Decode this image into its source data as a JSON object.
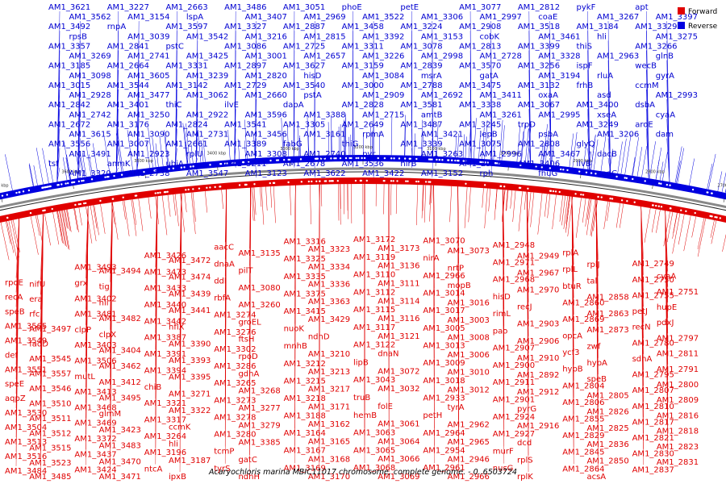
{
  "caption": "Acaryochloris marina MBIC11017 chromosome, complete genome. - 0..6503724",
  "legend": [
    {
      "label": "Forward",
      "color": "#e00000"
    },
    {
      "label": "Reverse",
      "color": "#0000e0"
    }
  ],
  "colors": {
    "forward": "#e00000",
    "reverse": "#0000e0",
    "ring": "#555555"
  },
  "scale_ticks": [
    "3700 kbp",
    "3600 kbp",
    "3500 kbp",
    "3400 kbp",
    "3300 kbp",
    "3200 kbp",
    "3100 kbp",
    "3000 kbp",
    "2900 kbp",
    "2800 kbp",
    "2700 kbp"
  ],
  "reverse_genes": [
    "AM1_3621",
    "AM1_3562",
    "AM1_3492",
    "rpsB",
    "AM1_3357",
    "AM1_3269",
    "AM1_3185",
    "AM1_3098",
    "AM1_3015",
    "AM1_2928",
    "AM1_2842",
    "AM1_2742",
    "AM1_2672",
    "AM1_3615",
    "AM1_3556",
    "AM1_3491",
    "tsf",
    "AM1_3320",
    "AM1_3227",
    "AM1_3154",
    "rnpA",
    "AM1_3039",
    "AM1_2841",
    "AM1_2741",
    "AM1_2664",
    "AM1_3605",
    "AM1_3544",
    "AM1_3477",
    "AM1_3401",
    "AM1_3250",
    "AM1_3176",
    "AM1_3090",
    "AM1_3007",
    "AM1_2923",
    "anmK",
    "AM1_2738",
    "AM1_2663",
    "lspA",
    "AM1_3597",
    "AM1_3542",
    "pstC",
    "AM1_3425",
    "AM1_3331",
    "AM1_3239",
    "AM1_3142",
    "AM1_3062",
    "thiC",
    "AM1_2922",
    "AM1_2824",
    "AM1_2731",
    "AM1_2661",
    "rplU",
    "ubiA",
    "AM1_3547",
    "AM1_3486",
    "AM1_3407",
    "AM1_3327",
    "AM1_3216",
    "AM1_3086",
    "AM1_3001",
    "AM1_2897",
    "AM1_2820",
    "AM1_2729",
    "AM1_2660",
    "ilvE",
    "AM1_3596",
    "AM1_3541",
    "AM1_3456",
    "AM1_3389",
    "AM1_3308",
    "AM1_3211",
    "AM1_3123",
    "AM1_3051",
    "AM1_2969",
    "AM1_2887",
    "AM1_2815",
    "AM1_2725",
    "AM1_2657",
    "AM1_3627",
    "hisD",
    "AM1_3540",
    "pstA",
    "dapA",
    "AM1_3388",
    "AM1_3305",
    "AM1_3161",
    "fabG",
    "AM1_2740",
    "AM1_2678",
    "AM1_3622",
    "phoE",
    "AM1_3522",
    "AM1_3458",
    "AM1_3392",
    "AM1_3311",
    "AM1_3226",
    "AM1_3159",
    "AM1_3084",
    "AM1_3000",
    "AM1_2909",
    "AM1_2828",
    "AM1_2715",
    "AM1_2649",
    "rpmA",
    "thiG",
    "pyr",
    "AM1_3536",
    "AM1_3422",
    "petE",
    "AM1_3306",
    "AM1_3224",
    "AM1_3153",
    "AM1_3078",
    "AM1_2998",
    "AM1_2839",
    "msrA",
    "AM1_2788",
    "AM1_2692",
    "AM1_3581",
    "amtB",
    "AM1_3487",
    "AM1_3421",
    "AM1_3339",
    "AM1_3263",
    "nirB",
    "AM1_3152",
    "AM1_3077",
    "AM1_2997",
    "AM1_2908",
    "cobK",
    "AM1_2813",
    "AM1_2728",
    "AM1_3570",
    "gatA",
    "AM1_3475",
    "AM1_3411",
    "AM1_3338",
    "AM1_3261",
    "AM1_3245",
    "lepB",
    "AM1_3075",
    "AM1_2996",
    "AM1_2913",
    "rph",
    "AM1_2812",
    "coaE",
    "AM1_3518",
    "AM1_3461",
    "AM1_3399",
    "AM1_3328",
    "AM1_3256",
    "AM1_3194",
    "AM1_3132",
    "oxaA",
    "AM1_3067",
    "AM1_2995",
    "trpD",
    "psbA",
    "AM1_2808",
    "AM1_3467",
    "AM1_3406",
    "fhuG",
    "pykF",
    "AM1_3267",
    "AM1_3184",
    "hli",
    "thiS",
    "AM1_2963",
    "ispF",
    "rluA",
    "frhB",
    "asd",
    "AM1_3400",
    "xseA",
    "AM1_3249",
    "AM1_3206",
    "glyQ",
    "dacB",
    "ilvB",
    "cadC",
    "apt",
    "AM1_3397",
    "AM1_3329",
    "AM1_3275",
    "AM1_3266",
    "glnB",
    "wecB",
    "gyrA",
    "ccmM",
    "AM1_2993",
    "dsbA",
    "cyaA",
    "aroE",
    "dam"
  ],
  "forward_genes": [
    "rpoE",
    "nifU",
    "recA",
    "era",
    "speB",
    "rfc",
    "AM1_3565",
    "AM1_3497",
    "AM1_3549",
    "fadD",
    "def",
    "AM1_3545",
    "AM1_3551",
    "AM1_3557",
    "speE",
    "AM1_3546",
    "aqpZ",
    "AM1_3510",
    "AM1_3530",
    "AM1_3511",
    "AM1_3504",
    "AM1_3512",
    "AM1_3513",
    "AM1_3515",
    "AM1_3516",
    "AM1_3523",
    "AM1_3484",
    "AM1_3485",
    "AM1_3493",
    "AM1_3494",
    "grx",
    "tig",
    "AM1_3402",
    "hli",
    "AM1_3481",
    "AM1_3482",
    "clpP",
    "clpX",
    "AM1_3403",
    "AM1_3404",
    "AM1_3506",
    "AM1_3462",
    "mutL",
    "AM1_3412",
    "AM1_3413",
    "AM1_3495",
    "AM1_3468",
    "glmM",
    "AM1_3469",
    "AM1_3423",
    "AM1_3372",
    "AM1_3483",
    "AM1_3437",
    "AM1_3470",
    "AM1_3424",
    "AM1_3471",
    "AM1_3426",
    "AM1_3472",
    "AM1_3473",
    "AM1_3474",
    "AM1_3433",
    "AM1_3439",
    "AM1_3440",
    "AM1_3441",
    "AM1_3442",
    "hflX",
    "AM1_3387",
    "AM1_3390",
    "AM1_3391",
    "AM1_3393",
    "AM1_3394",
    "AM1_3395",
    "chiB",
    "AM1_3271",
    "AM1_3321",
    "AM1_3322",
    "AM1_3317",
    "ccmK",
    "AM1_3264",
    "hli",
    "AM1_3196",
    "AM1_3187",
    "ntcA",
    "ipxB",
    "aacC",
    "AM1_3135",
    "dnaA",
    "pilT",
    "ddl",
    "AM1_3080",
    "rbfA",
    "AM1_3260",
    "AM1_3274",
    "groEL",
    "AM1_3276",
    "ftsH",
    "AM1_3302",
    "rpoD",
    "AM1_3286",
    "gdhA",
    "AM1_3265",
    "AM1_3268",
    "AM1_3273",
    "AM1_3277",
    "AM1_3278",
    "AM1_3279",
    "AM1_3280",
    "AM1_3385",
    "tcmP",
    "gatC",
    "tyrS",
    "ndhH",
    "AM1_3316",
    "AM1_3323",
    "AM1_3325",
    "AM1_3334",
    "AM1_3335",
    "AM1_3336",
    "AM1_3375",
    "AM1_3363",
    "AM1_3415",
    "AM1_3429",
    "nuoK",
    "ndhD",
    "mnhB",
    "AM1_3210",
    "AM1_3212",
    "AM1_3213",
    "AM1_3215",
    "AM1_3217",
    "AM1_3218",
    "AM1_3171",
    "AM1_3188",
    "AM1_3162",
    "AM1_3164",
    "AM1_3165",
    "AM1_3167",
    "AM1_3168",
    "AM1_3169",
    "AM1_3170",
    "AM1_3172",
    "AM1_3173",
    "AM1_3119",
    "AM1_3136",
    "AM1_3110",
    "AM1_3111",
    "AM1_3112",
    "AM1_3114",
    "AM1_3115",
    "AM1_3116",
    "AM1_3117",
    "AM1_3121",
    "AM1_3122",
    "dnaN",
    "lipB",
    "AM1_3072",
    "AM1_3043",
    "AM1_3032",
    "truB",
    "folE",
    "hemB",
    "AM1_3061",
    "AM1_3063",
    "AM1_3064",
    "AM1_3065",
    "AM1_3066",
    "AM1_3068",
    "AM1_3069",
    "AM1_3070",
    "AM1_3073",
    "nirA",
    "nrtP",
    "AM1_2966",
    "mopB",
    "AM1_3014",
    "AM1_3016",
    "AM1_3017",
    "AM1_3003",
    "AM1_3005",
    "AM1_3008",
    "AM1_3013",
    "AM1_3006",
    "AM1_3009",
    "AM1_3010",
    "AM1_3018",
    "AM1_3012",
    "AM1_2933",
    "tyrA",
    "petH",
    "AM1_2962",
    "AM1_2964",
    "AM1_2965",
    "AM1_2954",
    "AM1_2946",
    "AM1_2961",
    "AM1_2966",
    "AM1_2948",
    "AM1_2949",
    "AM1_2971",
    "AM1_2967",
    "AM1_2968",
    "AM1_2970",
    "hisD",
    "recJ",
    "rimL",
    "AM1_2903",
    "pao",
    "AM1_2906",
    "AM1_2907",
    "AM1_2910",
    "AM1_2900",
    "AM1_2892",
    "AM1_2911",
    "AM1_2912",
    "AM1_2901",
    "pyrG",
    "AM1_2924",
    "AM1_2916",
    "AM1_2927",
    "dcd",
    "murF",
    "rplS",
    "nusG",
    "rplK",
    "rplA",
    "rplJ",
    "rplL",
    "tal",
    "btuR",
    "AM1_2858",
    "AM1_2860",
    "AM1_2863",
    "AM1_2869",
    "AM1_2873",
    "opcA",
    "zwf",
    "ycf3",
    "hypA",
    "hypB",
    "speB",
    "AM1_2804",
    "AM1_2805",
    "AM1_2806",
    "AM1_2826",
    "AM1_2855",
    "AM1_2825",
    "AM1_2829",
    "AM1_2836",
    "AM1_2845",
    "AM1_2850",
    "AM1_2864",
    "acsA",
    "AM1_2749",
    "cyaA",
    "AM1_2750",
    "AM1_2751",
    "AM1_2755",
    "hupE",
    "petJ",
    "pdxJ",
    "recN",
    "AM1_2797",
    "AM1_2780",
    "AM1_2811",
    "sdhA",
    "AM1_2791",
    "AM1_2795",
    "AM1_2800",
    "AM1_2807",
    "AM1_2809",
    "AM1_2810",
    "AM1_2816",
    "AM1_2817",
    "AM1_2818",
    "AM1_2821",
    "AM1_2823",
    "AM1_2830",
    "AM1_2831",
    "AM1_2837"
  ]
}
